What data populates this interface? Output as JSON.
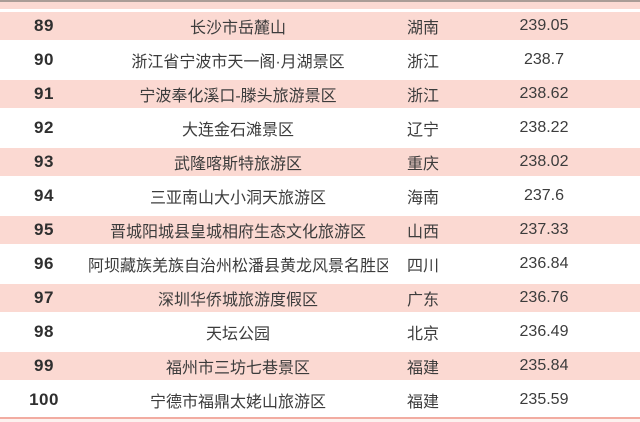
{
  "chart_data": {
    "type": "table",
    "rows": [
      {
        "rank": "89",
        "name": "长沙市岳麓山",
        "province": "湖南",
        "score": "239.05"
      },
      {
        "rank": "90",
        "name": "浙江省宁波市天一阁·月湖景区",
        "province": "浙江",
        "score": "238.7"
      },
      {
        "rank": "91",
        "name": "宁波奉化溪口-滕头旅游景区",
        "province": "浙江",
        "score": "238.62"
      },
      {
        "rank": "92",
        "name": "大连金石滩景区",
        "province": "辽宁",
        "score": "238.22"
      },
      {
        "rank": "93",
        "name": "武隆喀斯特旅游区",
        "province": "重庆",
        "score": "238.02"
      },
      {
        "rank": "94",
        "name": "三亚南山大小洞天旅游区",
        "province": "海南",
        "score": "237.6"
      },
      {
        "rank": "95",
        "name": "晋城阳城县皇城相府生态文化旅游区",
        "province": "山西",
        "score": "237.33"
      },
      {
        "rank": "96",
        "name": "阿坝藏族羌族自治州松潘县黄龙风景名胜区",
        "province": "四川",
        "score": "236.84"
      },
      {
        "rank": "97",
        "name": "深圳华侨城旅游度假区",
        "province": "广东",
        "score": "236.76"
      },
      {
        "rank": "98",
        "name": "天坛公园",
        "province": "北京",
        "score": "236.49"
      },
      {
        "rank": "99",
        "name": "福州市三坊七巷景区",
        "province": "福建",
        "score": "235.84"
      },
      {
        "rank": "100",
        "name": "宁德市福鼎太姥山旅游区",
        "province": "福建",
        "score": "235.59"
      }
    ],
    "layout": {
      "row_striping": "odd ranks pink, even ranks white",
      "first_row_fill": "pink",
      "columns": [
        "rank",
        "name",
        "province",
        "score"
      ]
    }
  },
  "colors": {
    "row_pink": "#fbd9d2",
    "top_line": "#aa9c96",
    "bottom_line": "#f2aca1",
    "bottom_fill": "#fdf1ef",
    "text": "#3c3c3c",
    "rank_text": "#2f2f2f"
  }
}
